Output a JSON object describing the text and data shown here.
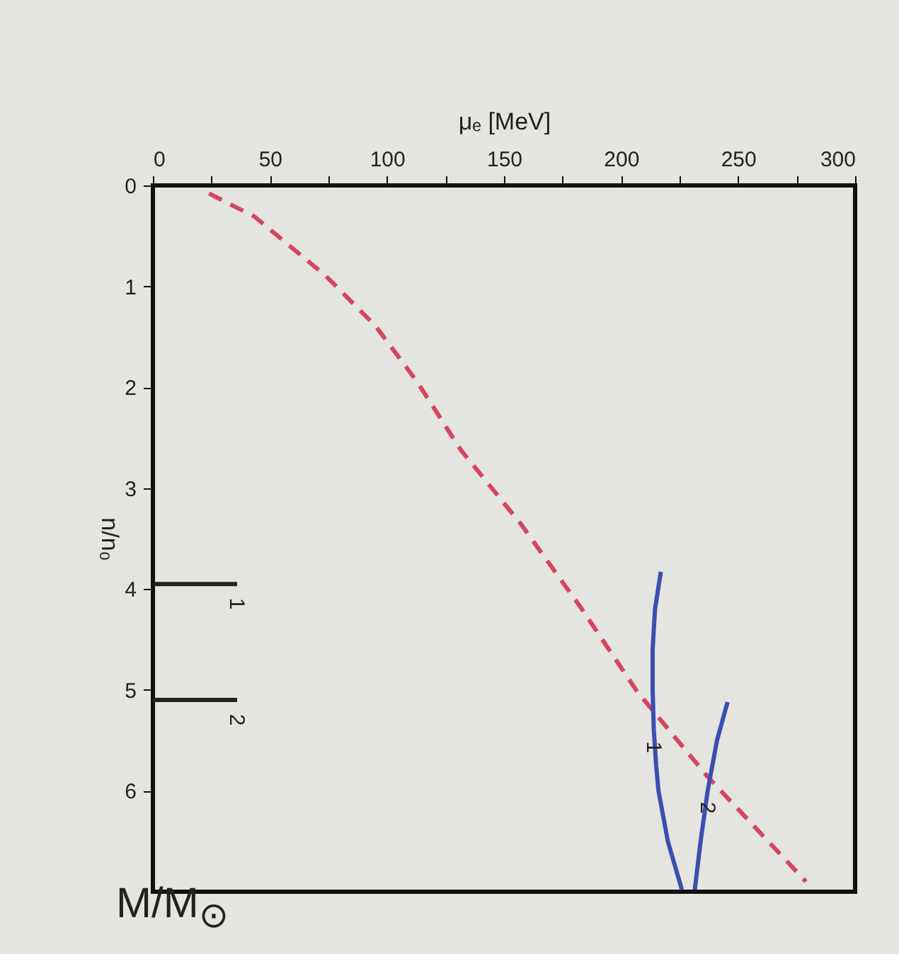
{
  "chart_data": {
    "type": "line",
    "xlabel": "μₑ [MeV]",
    "ylabel": "n/n₀",
    "xlim": [
      0,
      300
    ],
    "ylim": [
      7,
      0
    ],
    "xticks": [
      0,
      {
        "value": 25,
        "label": null
      },
      50,
      {
        "value": 75,
        "label": null
      },
      100,
      {
        "value": 125,
        "label": null
      },
      150,
      {
        "value": 175,
        "label": null
      },
      200,
      {
        "value": 225,
        "label": null
      },
      250,
      {
        "value": 275,
        "label": null
      },
      300
    ],
    "yticks": [
      0,
      1,
      2,
      3,
      4,
      5,
      6
    ],
    "grid": false,
    "legend": false,
    "series": [
      {
        "color": "#d6455e",
        "line_style": "dashed",
        "x": [
          24,
          43.5,
          74,
          95,
          113,
          131.5,
          157,
          182.7,
          207,
          237,
          279
        ],
        "values": [
          0.08,
          0.31,
          0.9,
          1.39,
          1.95,
          2.62,
          3.35,
          4.18,
          5.02,
          5.86,
          6.9
        ]
      },
      {
        "name": "1",
        "color": "#3a4fb0",
        "line_style": "solid",
        "x": [
          217,
          214.5,
          213.5,
          213.5,
          214,
          215,
          216,
          220,
          226
        ],
        "values": [
          3.83,
          4.2,
          4.6,
          5.0,
          5.4,
          5.75,
          6.0,
          6.5,
          6.98
        ]
      },
      {
        "name": "2",
        "color": "#3a4fb0",
        "line_style": "solid",
        "x": [
          245.5,
          241,
          237,
          234,
          231.5
        ],
        "values": [
          5.12,
          5.5,
          6.0,
          6.5,
          6.98
        ]
      }
    ],
    "ref_lines": [
      {
        "axis": "y",
        "value": 3.95,
        "color": "#222222"
      },
      {
        "axis": "y",
        "value": 5.1,
        "color": "#222222"
      }
    ],
    "annotations": [
      "1",
      "2",
      "M/M$_{⊙}$"
    ]
  }
}
